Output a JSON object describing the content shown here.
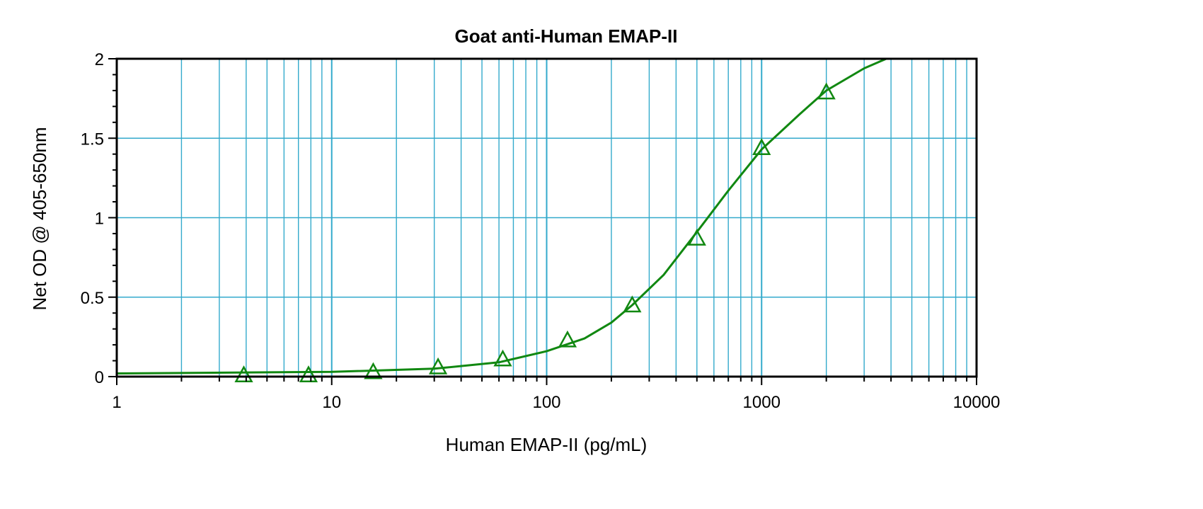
{
  "chart_data": {
    "type": "scatter",
    "title": "Goat anti-Human EMAP-II",
    "xlabel": "Human EMAP-II (pg/mL)",
    "ylabel": "Net OD @ 405-650nm",
    "x_scale": "log",
    "xlim": [
      1,
      10000
    ],
    "ylim": [
      0,
      2
    ],
    "x_ticks": [
      "1",
      "10",
      "100",
      "1000",
      "10000"
    ],
    "y_ticks": [
      "0",
      "0.5",
      "1",
      "1.5",
      "2"
    ],
    "grid": true,
    "legend": "none",
    "series": [
      {
        "marker": "triangle",
        "color": "#118811",
        "points": [
          {
            "x": 3.9,
            "y": 0.01
          },
          {
            "x": 7.8,
            "y": 0.01
          },
          {
            "x": 15.6,
            "y": 0.03
          },
          {
            "x": 31.25,
            "y": 0.06
          },
          {
            "x": 62.5,
            "y": 0.11
          },
          {
            "x": 125,
            "y": 0.23
          },
          {
            "x": 250,
            "y": 0.45
          },
          {
            "x": 500,
            "y": 0.87
          },
          {
            "x": 1000,
            "y": 1.44
          },
          {
            "x": 2000,
            "y": 1.79
          }
        ],
        "fit_curve": [
          {
            "x": 1,
            "y": 0.02
          },
          {
            "x": 10,
            "y": 0.03
          },
          {
            "x": 30,
            "y": 0.05
          },
          {
            "x": 60,
            "y": 0.09
          },
          {
            "x": 100,
            "y": 0.16
          },
          {
            "x": 150,
            "y": 0.24
          },
          {
            "x": 200,
            "y": 0.34
          },
          {
            "x": 250,
            "y": 0.45
          },
          {
            "x": 350,
            "y": 0.64
          },
          {
            "x": 500,
            "y": 0.91
          },
          {
            "x": 700,
            "y": 1.17
          },
          {
            "x": 1000,
            "y": 1.43
          },
          {
            "x": 1500,
            "y": 1.65
          },
          {
            "x": 2000,
            "y": 1.8
          },
          {
            "x": 3000,
            "y": 1.94
          },
          {
            "x": 3800,
            "y": 2.0
          }
        ]
      }
    ],
    "colors": {
      "grid": "#33aacc",
      "series": "#118811",
      "frame": "#000000"
    }
  }
}
